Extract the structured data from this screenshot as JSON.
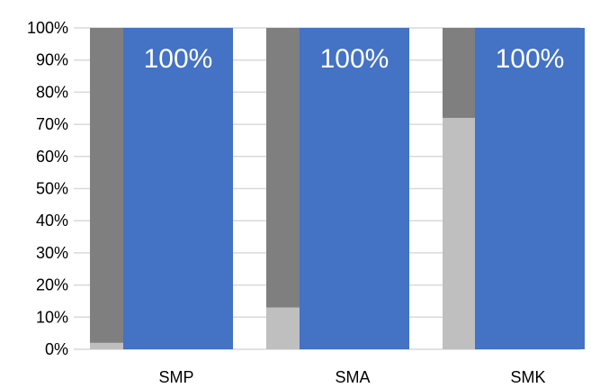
{
  "chart_data": {
    "type": "bar",
    "stacked": true,
    "categories": [
      "SMP",
      "SMA",
      "SMK"
    ],
    "y_ticks": [
      "0%",
      "10%",
      "20%",
      "30%",
      "40%",
      "50%",
      "60%",
      "70%",
      "80%",
      "90%",
      "100%"
    ],
    "ylim": [
      0,
      100
    ],
    "grid": true,
    "series_stacked": [
      {
        "values": [
          2,
          13,
          72
        ],
        "color": "#bfbfbf"
      },
      {
        "values": [
          98,
          87,
          28
        ],
        "color": "#7f7f7f"
      }
    ],
    "series_single": {
      "values": [
        100,
        100,
        100
      ],
      "color": "#4472c4"
    },
    "data_labels": [
      "100%",
      "100%",
      "100%"
    ]
  }
}
